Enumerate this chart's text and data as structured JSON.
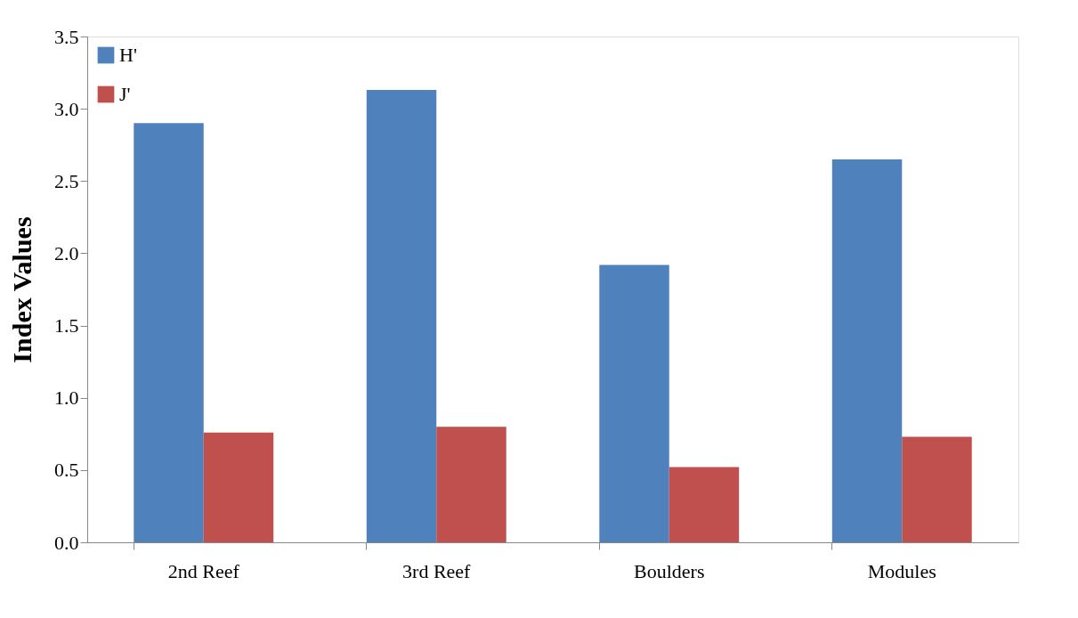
{
  "chart_data": {
    "type": "bar",
    "ylabel": "Index Values",
    "categories": [
      "2nd Reef",
      "3rd Reef",
      "Boulders",
      "Modules"
    ],
    "series": [
      {
        "name": "H'",
        "color": "#4f81bd",
        "values": [
          2.9,
          3.13,
          1.92,
          2.65
        ]
      },
      {
        "name": "J'",
        "color": "#c0504d",
        "values": [
          0.76,
          0.8,
          0.52,
          0.73
        ]
      }
    ],
    "ylim": [
      0,
      3.5
    ],
    "yticks": [
      {
        "value": 0,
        "label": "0.0"
      },
      {
        "value": 0.5,
        "label": "0.5"
      },
      {
        "value": 1,
        "label": "1.0"
      },
      {
        "value": 1.5,
        "label": "1.5"
      },
      {
        "value": 2,
        "label": "2.0"
      },
      {
        "value": 2.5,
        "label": "2.5"
      },
      {
        "value": 3,
        "label": "3.0"
      },
      {
        "value": 3.5,
        "label": "3.5"
      }
    ],
    "grid": false,
    "legend": "top left"
  }
}
